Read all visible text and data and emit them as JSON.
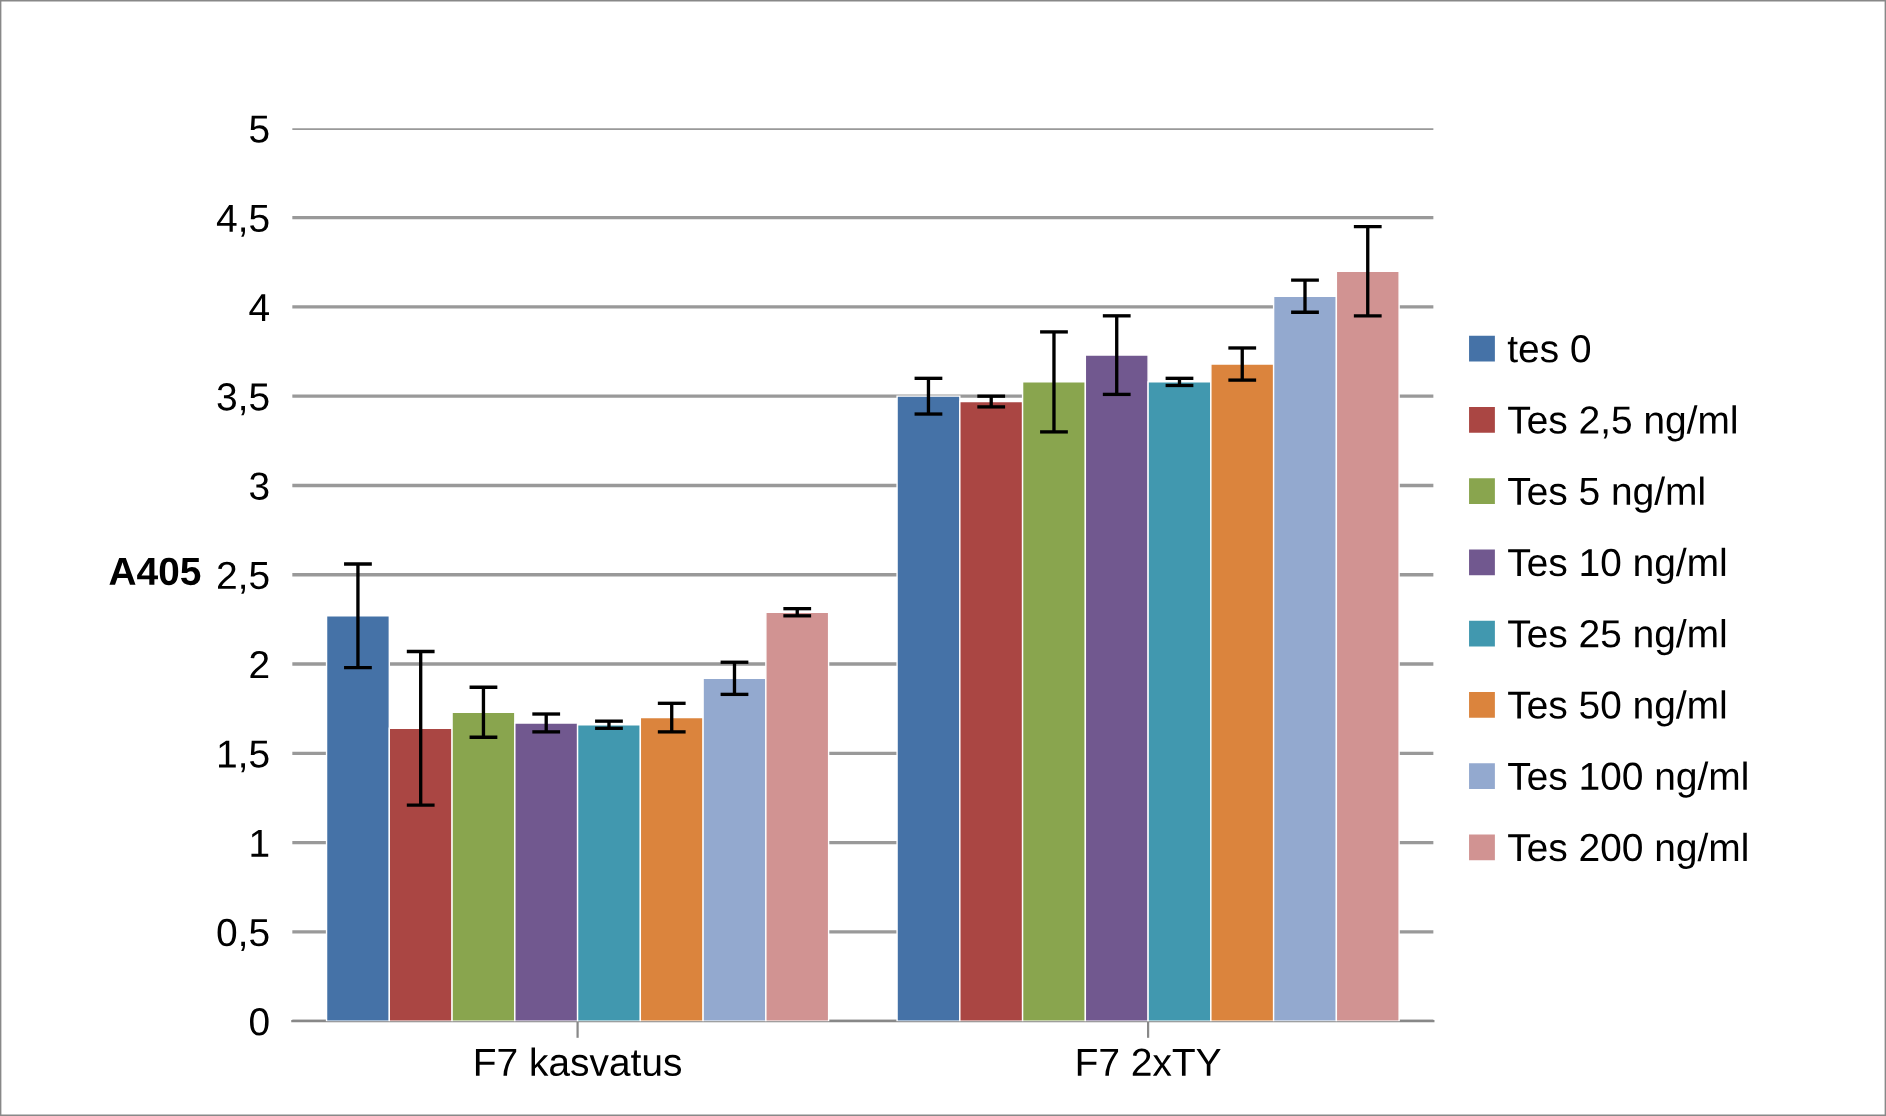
{
  "chart_data": {
    "type": "bar",
    "ylabel": "A405",
    "categories": [
      "F7 kasvatus",
      "F7 2xTY"
    ],
    "series": [
      {
        "name": "tes 0",
        "color": "#4572a7",
        "values": [
          2.27,
          3.5
        ],
        "errors": [
          0.29,
          0.1
        ]
      },
      {
        "name": "Tes 2,5 ng/ml",
        "color": "#aa4643",
        "values": [
          1.64,
          3.47
        ],
        "errors": [
          0.43,
          0.03
        ]
      },
      {
        "name": "Tes 5 ng/ml",
        "color": "#89a54e",
        "values": [
          1.73,
          3.58
        ],
        "errors": [
          0.14,
          0.28
        ]
      },
      {
        "name": "Tes 10 ng/ml",
        "color": "#71588f",
        "values": [
          1.67,
          3.73
        ],
        "errors": [
          0.05,
          0.22
        ]
      },
      {
        "name": "Tes 25 ng/ml",
        "color": "#4198af",
        "values": [
          1.66,
          3.58
        ],
        "errors": [
          0.02,
          0.02
        ]
      },
      {
        "name": "Tes 50 ng/ml",
        "color": "#db843d",
        "values": [
          1.7,
          3.68
        ],
        "errors": [
          0.08,
          0.09
        ]
      },
      {
        "name": "Tes 100 ng/ml",
        "color": "#93a9cf",
        "values": [
          1.92,
          4.06
        ],
        "errors": [
          0.09,
          0.09
        ]
      },
      {
        "name": "Tes 200 ng/ml",
        "color": "#d19392",
        "values": [
          2.29,
          4.2
        ],
        "errors": [
          0.02,
          0.25
        ]
      }
    ],
    "ylim": [
      0,
      5
    ],
    "yticks": [
      0,
      {
        "value": 0.5,
        "label": "0,5"
      },
      1,
      {
        "value": 1.5,
        "label": "1,5"
      },
      2,
      {
        "value": 2.5,
        "label": "2,5"
      },
      3,
      {
        "value": 3.5,
        "label": "3,5"
      },
      4,
      {
        "value": 4.5,
        "label": "4,5"
      },
      5
    ],
    "grid": "y",
    "legend": "right"
  }
}
